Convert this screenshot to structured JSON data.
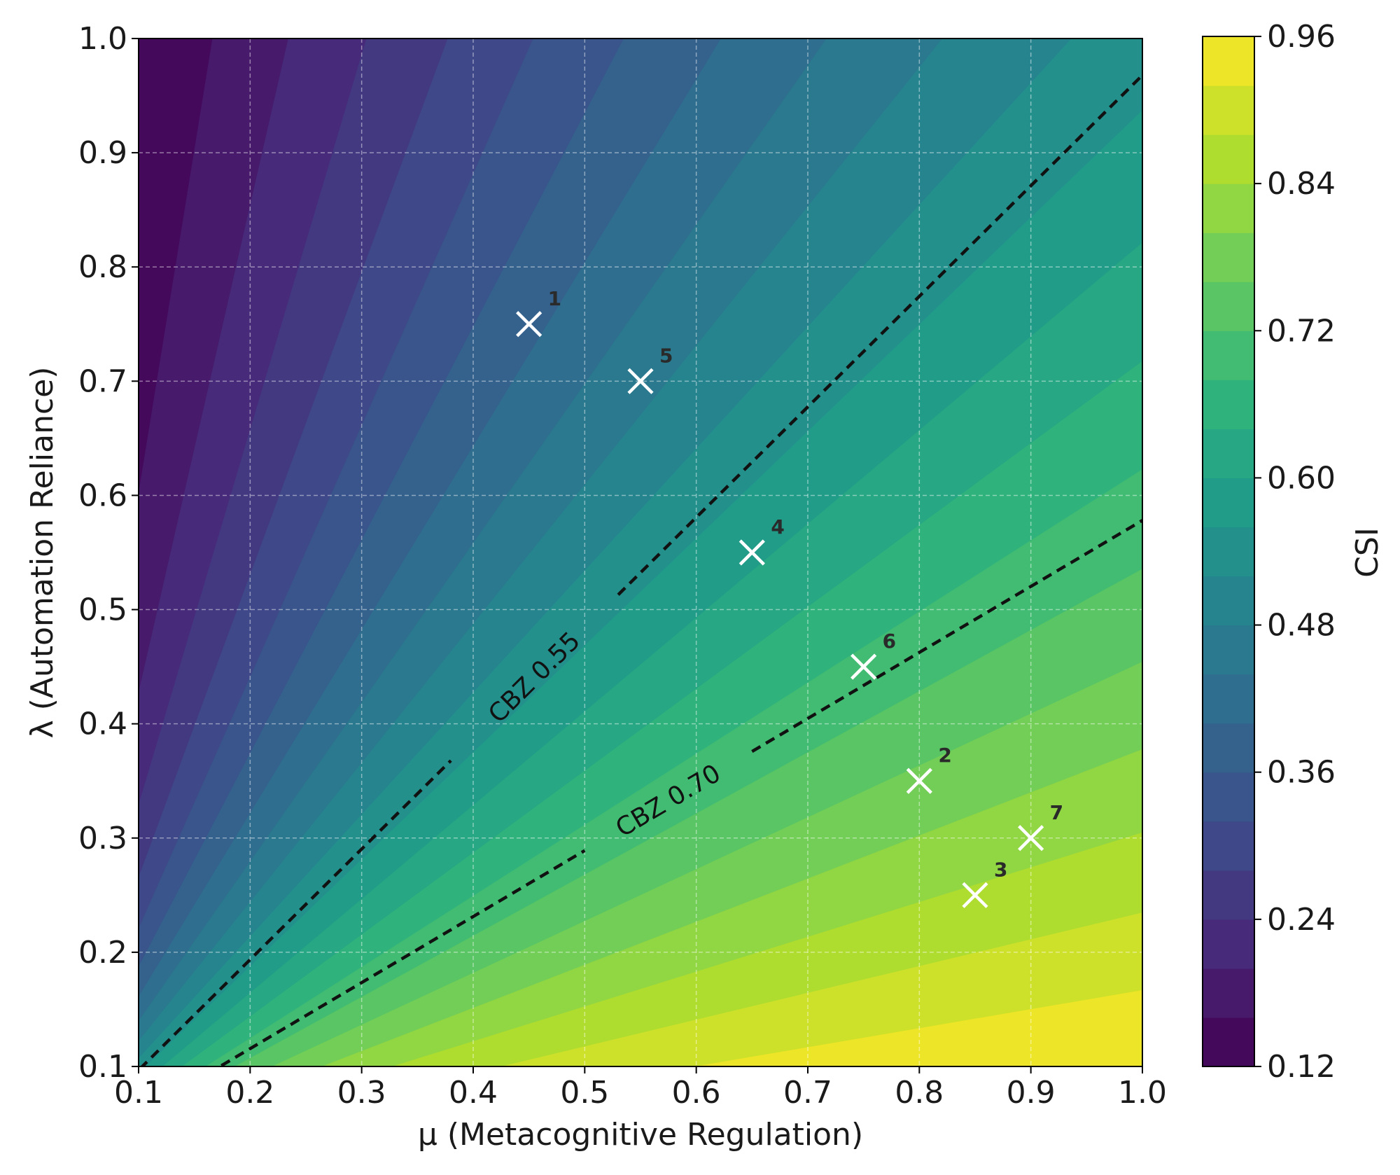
{
  "chart_data": {
    "type": "heatmap",
    "title": "",
    "xlabel": "μ (Metacognitive Regulation)",
    "ylabel": "λ (Automation Reliance)",
    "xlim": [
      0.1,
      1.0
    ],
    "ylim": [
      0.1,
      1.0
    ],
    "x_ticks": [
      "0.1",
      "0.2",
      "0.3",
      "0.4",
      "0.5",
      "0.6",
      "0.7",
      "0.8",
      "0.9",
      "1.0"
    ],
    "y_ticks": [
      "0.1",
      "0.2",
      "0.3",
      "0.4",
      "0.5",
      "0.6",
      "0.7",
      "0.8",
      "0.9",
      "1.0"
    ],
    "grid": true,
    "colormap": "viridis",
    "colorbar": {
      "label": "CSI",
      "range": [
        0.12,
        0.96
      ],
      "levels": 21,
      "ticks": [
        "0.12",
        "0.24",
        "0.36",
        "0.48",
        "0.60",
        "0.72",
        "0.84",
        "0.96"
      ]
    },
    "contours": [
      {
        "label": "CBZ 0.55",
        "value": 0.55
      },
      {
        "label": "CBZ 0.70",
        "value": 0.7
      }
    ],
    "points": [
      {
        "label": "1",
        "x": 0.45,
        "y": 0.75
      },
      {
        "label": "2",
        "x": 0.8,
        "y": 0.35
      },
      {
        "label": "3",
        "x": 0.85,
        "y": 0.25
      },
      {
        "label": "4",
        "x": 0.65,
        "y": 0.55
      },
      {
        "label": "5",
        "x": 0.55,
        "y": 0.7
      },
      {
        "label": "6",
        "x": 0.75,
        "y": 0.45
      },
      {
        "label": "7",
        "x": 0.9,
        "y": 0.3
      }
    ]
  }
}
